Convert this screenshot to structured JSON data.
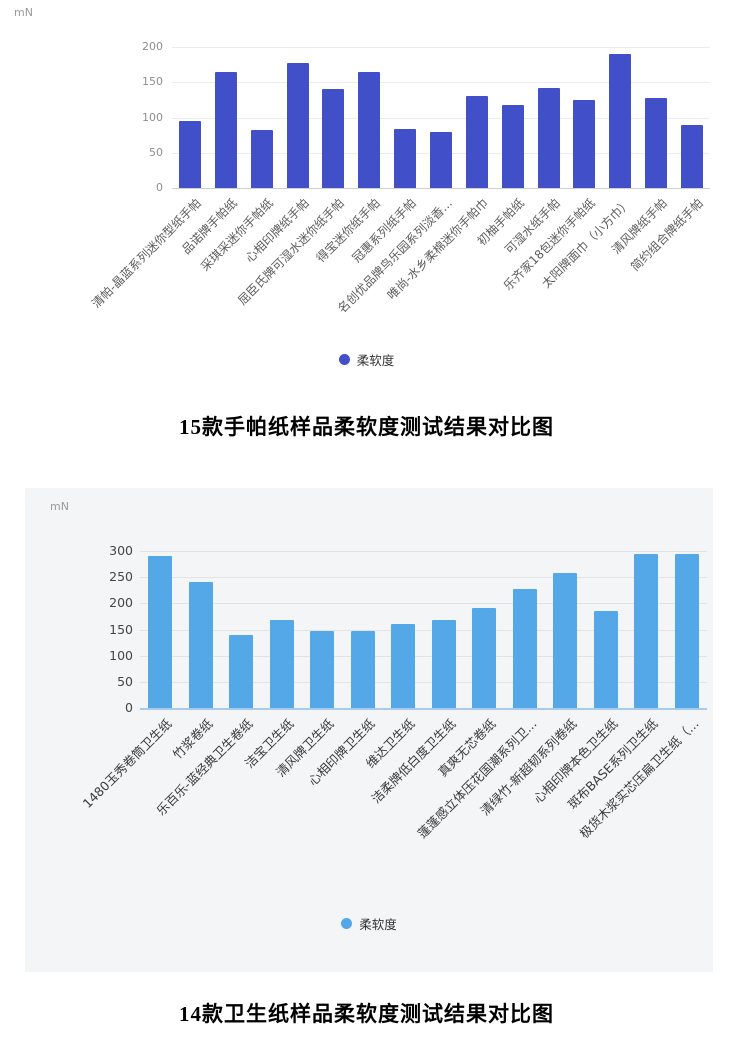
{
  "page": {
    "background": "#ffffff"
  },
  "chart_data": [
    {
      "type": "bar",
      "title": "15款手帕纸样品柔软度测试结果对比图",
      "unit_label": "mN",
      "ylabel": "mN",
      "series_name": "柔软度",
      "legend_position": "bottom",
      "grid": true,
      "bar_color": "#4150c8",
      "panel_background": "#ffffff",
      "ylim": [
        0,
        200
      ],
      "yticks": [
        0,
        50,
        100,
        150,
        200
      ],
      "categories": [
        "清帕-晶蓝系列迷你型纸手帕",
        "品诺牌手帕纸",
        "采琪采迷你手帕纸",
        "心相印牌纸手帕",
        "屈臣氏牌可湿水迷你纸手帕",
        "得宝迷你纸手帕",
        "冠惠系列纸手帕",
        "名创优品牌鸟乐园系列淡香...",
        "唯尚-水乡柔棉迷你手帕巾",
        "初柚手帕纸",
        "可湿水纸手帕",
        "乐齐家18包迷你手帕纸",
        "太阳牌面巾（小方巾）",
        "清风牌纸手帕",
        "简约组合牌纸手帕"
      ],
      "values": [
        95,
        165,
        82,
        177,
        140,
        165,
        84,
        80,
        130,
        118,
        142,
        125,
        190,
        128,
        90
      ]
    },
    {
      "type": "bar",
      "title": "14款卫生纸样品柔软度测试结果对比图",
      "unit_label": "mN",
      "ylabel": "mN",
      "series_name": "柔软度",
      "legend_position": "bottom",
      "grid": true,
      "bar_color": "#54a8e8",
      "panel_background": "#f4f5f6",
      "ylim": [
        0,
        300
      ],
      "yticks": [
        0,
        50,
        100,
        150,
        200,
        250,
        300
      ],
      "categories": [
        "1480玉秀卷筒卫生纸",
        "竹浆卷纸",
        "乐百乐-蓝经典卫生卷纸",
        "洁宝卫生纸",
        "清风牌卫生纸",
        "心相印牌卫生纸",
        "维达卫生纸",
        "洁柔牌低白度卫生纸",
        "真爽无芯卷纸",
        "蓬蓬感立体压花国潮系列卫...",
        "清绿竹-新超韧系列卷纸",
        "心相印牌本色卫生纸",
        "斑布BASE系列卫生纸",
        "极货木浆实芯压扁卫生纸（..."
      ],
      "values": [
        290,
        240,
        140,
        168,
        147,
        147,
        160,
        168,
        192,
        228,
        258,
        185,
        295,
        295
      ]
    }
  ]
}
